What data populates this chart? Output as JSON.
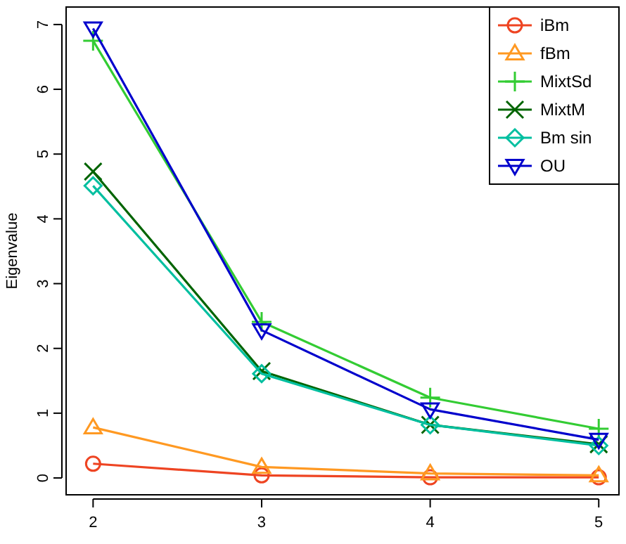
{
  "chart_data": {
    "type": "line",
    "ylabel": "Eigenvalue",
    "x": [
      2,
      3,
      4,
      5
    ],
    "xlim": [
      1.84,
      5.12
    ],
    "ylim": [
      -0.26,
      7.27
    ],
    "xticks": [
      2,
      3,
      4,
      5
    ],
    "yticks": [
      0,
      1,
      2,
      3,
      4,
      5,
      6,
      7
    ],
    "grid": false,
    "legend": "top right",
    "series": [
      {
        "name": "iBm",
        "color": "#ee4422",
        "marker": "circle",
        "values": [
          0.22,
          0.04,
          0.01,
          0.01
        ]
      },
      {
        "name": "fBm",
        "color": "#ff9922",
        "marker": "triangle",
        "values": [
          0.78,
          0.17,
          0.07,
          0.04
        ]
      },
      {
        "name": "MixtSd",
        "color": "#33cc33",
        "marker": "cross",
        "values": [
          6.75,
          2.41,
          1.24,
          0.76
        ]
      },
      {
        "name": "MixtM",
        "color": "#006400",
        "marker": "x",
        "values": [
          4.73,
          1.65,
          0.82,
          0.52
        ]
      },
      {
        "name": "Bm sin",
        "color": "#00bfa0",
        "marker": "diamond",
        "values": [
          4.51,
          1.61,
          0.82,
          0.5
        ]
      },
      {
        "name": "OU",
        "color": "#0000cc",
        "marker": "triangle-down",
        "values": [
          6.94,
          2.28,
          1.06,
          0.59
        ]
      }
    ]
  }
}
